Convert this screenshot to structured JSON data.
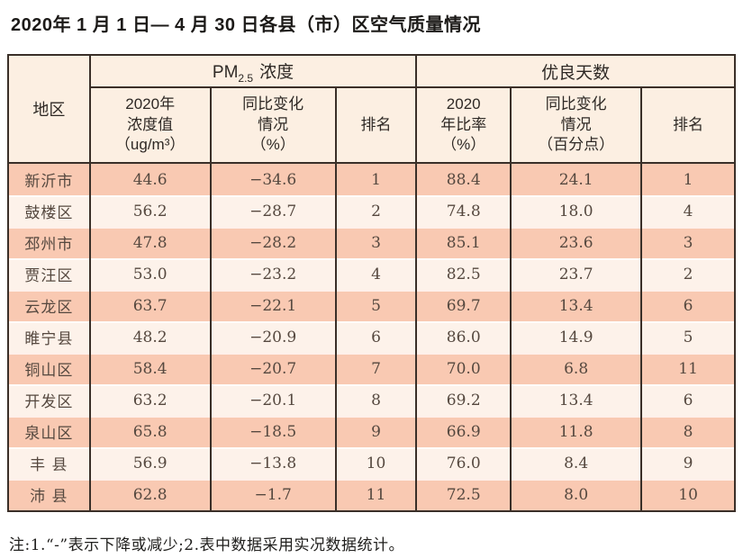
{
  "title": "2020年 1 月 1 日— 4 月 30 日各县（市）区空气质量情况",
  "note": "注:1.“-”表示下降或减少;2.表中数据采用实况数据统计。",
  "colors": {
    "row_salmon": "#f9c9b2",
    "row_light": "#fdf2ea",
    "header_bg": "#fcefe2",
    "border": "#3a2f28",
    "data_text": "#55483f"
  },
  "table": {
    "corner_header": "地区",
    "group_pm": {
      "main": "PM",
      "sub": "2.5",
      "rest": "浓度"
    },
    "group_good": "优良天数",
    "subheaders": {
      "pm_value": "2020年\n浓度值\n（ug/m³）",
      "pm_change": "同比变化\n情况\n（%）",
      "pm_rank": "排名",
      "good_ratio": "2020\n年比率\n（%）",
      "good_change": "同比变化\n情况\n（百分点）",
      "good_rank": "排名"
    },
    "rows": [
      {
        "region": "新沂市",
        "pm": "44.6",
        "pm_chg": "−34.6",
        "pm_rank": "1",
        "good": "88.4",
        "good_chg": "24.1",
        "good_rank": "1"
      },
      {
        "region": "鼓楼区",
        "pm": "56.2",
        "pm_chg": "−28.7",
        "pm_rank": "2",
        "good": "74.8",
        "good_chg": "18.0",
        "good_rank": "4"
      },
      {
        "region": "邳州市",
        "pm": "47.8",
        "pm_chg": "−28.2",
        "pm_rank": "3",
        "good": "85.1",
        "good_chg": "23.6",
        "good_rank": "3"
      },
      {
        "region": "贾汪区",
        "pm": "53.0",
        "pm_chg": "−23.2",
        "pm_rank": "4",
        "good": "82.5",
        "good_chg": "23.7",
        "good_rank": "2"
      },
      {
        "region": "云龙区",
        "pm": "63.7",
        "pm_chg": "−22.1",
        "pm_rank": "5",
        "good": "69.7",
        "good_chg": "13.4",
        "good_rank": "6"
      },
      {
        "region": "睢宁县",
        "pm": "48.2",
        "pm_chg": "−20.9",
        "pm_rank": "6",
        "good": "86.0",
        "good_chg": "14.9",
        "good_rank": "5"
      },
      {
        "region": "铜山区",
        "pm": "58.4",
        "pm_chg": "−20.7",
        "pm_rank": "7",
        "good": "70.0",
        "good_chg": "6.8",
        "good_rank": "11"
      },
      {
        "region": "开发区",
        "pm": "63.2",
        "pm_chg": "−20.1",
        "pm_rank": "8",
        "good": "69.2",
        "good_chg": "13.4",
        "good_rank": "6"
      },
      {
        "region": "泉山区",
        "pm": "65.8",
        "pm_chg": "−18.5",
        "pm_rank": "9",
        "good": "66.9",
        "good_chg": "11.8",
        "good_rank": "8"
      },
      {
        "region": "丰 县",
        "pm": "56.9",
        "pm_chg": "−13.8",
        "pm_rank": "10",
        "good": "76.0",
        "good_chg": "8.4",
        "good_rank": "9"
      },
      {
        "region": "沛 县",
        "pm": "62.8",
        "pm_chg": "−1.7",
        "pm_rank": "11",
        "good": "72.5",
        "good_chg": "8.0",
        "good_rank": "10"
      }
    ]
  }
}
